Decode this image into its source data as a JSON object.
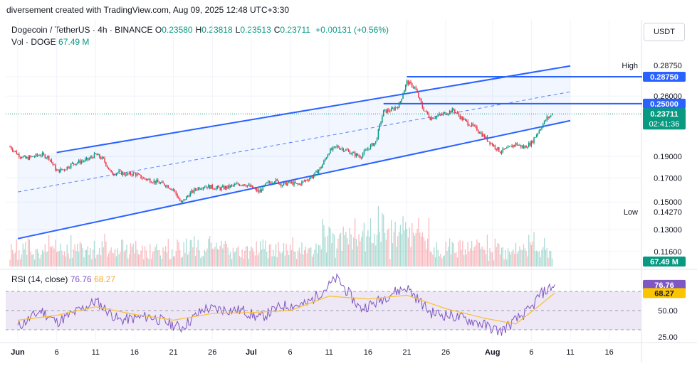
{
  "header": {
    "note": "diversement created with TradingView.com, Aug 09, 2025 12:48 UTC+3:30",
    "symbol": "Dogecoin / TetherUS · 4h · BINANCE",
    "ohlc": [
      {
        "k": "O",
        "v": "0.23580"
      },
      {
        "k": "H",
        "v": "0.23818"
      },
      {
        "k": "L",
        "v": "0.23513"
      },
      {
        "k": "C",
        "v": "0.23711"
      }
    ],
    "change": "+0.00131 (+0.56%)",
    "vol_label": "Vol · DOGE",
    "vol_value": "67.49 M",
    "currency_button": "USDT"
  },
  "rsi_legend": {
    "label": "RSI (14, close)",
    "rsi": "76.76",
    "ma": "68.27"
  },
  "colors": {
    "up": "#089981",
    "down": "#f23645",
    "channel": "#2962ff",
    "rsi_line": "#7e57c2",
    "rsi_ma": "#fbc02d",
    "rsi_band": "#ede7f6"
  },
  "chart_data": {
    "type": "candlestick",
    "symbol": "DOGE/USDT",
    "interval": "4h",
    "x_axis": {
      "labels": [
        {
          "text": "Jun",
          "date": "2025-06-01"
        },
        {
          "text": "6",
          "date": "2025-06-06"
        },
        {
          "text": "11",
          "date": "2025-06-11"
        },
        {
          "text": "16",
          "date": "2025-06-16"
        },
        {
          "text": "21",
          "date": "2025-06-21"
        },
        {
          "text": "26",
          "date": "2025-06-26"
        },
        {
          "text": "Jul",
          "date": "2025-07-01"
        },
        {
          "text": "6",
          "date": "2025-07-06"
        },
        {
          "text": "11",
          "date": "2025-07-11"
        },
        {
          "text": "16",
          "date": "2025-07-16"
        },
        {
          "text": "21",
          "date": "2025-07-21"
        },
        {
          "text": "26",
          "date": "2025-07-26"
        },
        {
          "text": "Aug",
          "date": "2025-08-01"
        },
        {
          "text": "6",
          "date": "2025-08-06"
        },
        {
          "text": "11",
          "date": "2025-08-11"
        },
        {
          "text": "16",
          "date": "2025-08-16"
        }
      ]
    },
    "y_axis": {
      "scale": "log",
      "ticks": [
        "0.28750",
        "0.26000",
        "0.19000",
        "0.17000",
        "0.15000",
        "0.13000",
        "0.11600"
      ]
    },
    "price_path": [
      {
        "date": "2025-05-31",
        "close": 0.2
      },
      {
        "date": "2025-06-01",
        "close": 0.192
      },
      {
        "date": "2025-06-02",
        "close": 0.188
      },
      {
        "date": "2025-06-03",
        "close": 0.19
      },
      {
        "date": "2025-06-04",
        "close": 0.192
      },
      {
        "date": "2025-06-05",
        "close": 0.189
      },
      {
        "date": "2025-06-06",
        "close": 0.176
      },
      {
        "date": "2025-06-07",
        "close": 0.178
      },
      {
        "date": "2025-06-08",
        "close": 0.183
      },
      {
        "date": "2025-06-09",
        "close": 0.185
      },
      {
        "date": "2025-06-10",
        "close": 0.187
      },
      {
        "date": "2025-06-11",
        "close": 0.192
      },
      {
        "date": "2025-06-12",
        "close": 0.187
      },
      {
        "date": "2025-06-13",
        "close": 0.174
      },
      {
        "date": "2025-06-14",
        "close": 0.175
      },
      {
        "date": "2025-06-15",
        "close": 0.173
      },
      {
        "date": "2025-06-16",
        "close": 0.174
      },
      {
        "date": "2025-06-17",
        "close": 0.17
      },
      {
        "date": "2025-06-18",
        "close": 0.168
      },
      {
        "date": "2025-06-19",
        "close": 0.166
      },
      {
        "date": "2025-06-20",
        "close": 0.164
      },
      {
        "date": "2025-06-21",
        "close": 0.16
      },
      {
        "date": "2025-06-22",
        "close": 0.149
      },
      {
        "date": "2025-06-23",
        "close": 0.156
      },
      {
        "date": "2025-06-24",
        "close": 0.161
      },
      {
        "date": "2025-06-25",
        "close": 0.163
      },
      {
        "date": "2025-06-26",
        "close": 0.162
      },
      {
        "date": "2025-06-27",
        "close": 0.161
      },
      {
        "date": "2025-06-28",
        "close": 0.162
      },
      {
        "date": "2025-06-29",
        "close": 0.164
      },
      {
        "date": "2025-06-30",
        "close": 0.165
      },
      {
        "date": "2025-07-01",
        "close": 0.162
      },
      {
        "date": "2025-07-02",
        "close": 0.158
      },
      {
        "date": "2025-07-03",
        "close": 0.165
      },
      {
        "date": "2025-07-04",
        "close": 0.168
      },
      {
        "date": "2025-07-05",
        "close": 0.164
      },
      {
        "date": "2025-07-06",
        "close": 0.166
      },
      {
        "date": "2025-07-07",
        "close": 0.164
      },
      {
        "date": "2025-07-08",
        "close": 0.168
      },
      {
        "date": "2025-07-09",
        "close": 0.172
      },
      {
        "date": "2025-07-10",
        "close": 0.18
      },
      {
        "date": "2025-07-11",
        "close": 0.195
      },
      {
        "date": "2025-07-12",
        "close": 0.2
      },
      {
        "date": "2025-07-13",
        "close": 0.197
      },
      {
        "date": "2025-07-14",
        "close": 0.193
      },
      {
        "date": "2025-07-15",
        "close": 0.19
      },
      {
        "date": "2025-07-16",
        "close": 0.198
      },
      {
        "date": "2025-07-17",
        "close": 0.205
      },
      {
        "date": "2025-07-18",
        "close": 0.24
      },
      {
        "date": "2025-07-19",
        "close": 0.242
      },
      {
        "date": "2025-07-20",
        "close": 0.248
      },
      {
        "date": "2025-07-21",
        "close": 0.28
      },
      {
        "date": "2025-07-22",
        "close": 0.272
      },
      {
        "date": "2025-07-23",
        "close": 0.245
      },
      {
        "date": "2025-07-24",
        "close": 0.232
      },
      {
        "date": "2025-07-25",
        "close": 0.235
      },
      {
        "date": "2025-07-26",
        "close": 0.238
      },
      {
        "date": "2025-07-27",
        "close": 0.242
      },
      {
        "date": "2025-07-28",
        "close": 0.232
      },
      {
        "date": "2025-07-29",
        "close": 0.225
      },
      {
        "date": "2025-07-30",
        "close": 0.219
      },
      {
        "date": "2025-07-31",
        "close": 0.21
      },
      {
        "date": "2025-08-01",
        "close": 0.202
      },
      {
        "date": "2025-08-02",
        "close": 0.195
      },
      {
        "date": "2025-08-03",
        "close": 0.198
      },
      {
        "date": "2025-08-04",
        "close": 0.203
      },
      {
        "date": "2025-08-05",
        "close": 0.199
      },
      {
        "date": "2025-08-06",
        "close": 0.204
      },
      {
        "date": "2025-08-07",
        "close": 0.218
      },
      {
        "date": "2025-08-08",
        "close": 0.232
      },
      {
        "date": "2025-08-09",
        "close": 0.23711
      }
    ],
    "channel": {
      "upper": [
        {
          "date": "2025-06-06",
          "price": 0.194
        },
        {
          "date": "2025-08-09",
          "price": 0.3
        }
      ],
      "lower": [
        {
          "date": "2025-06-01",
          "price": 0.124
        },
        {
          "date": "2025-08-09",
          "price": 0.225
        }
      ],
      "mid": [
        {
          "date": "2025-06-01",
          "price": 0.158
        },
        {
          "date": "2025-08-09",
          "price": 0.262
        }
      ]
    },
    "levels": [
      {
        "label": "High",
        "price": 0.2875,
        "text": "0.28750"
      },
      {
        "price": 0.25,
        "text": "0.25000"
      },
      {
        "label": "Low",
        "price": 0.1427,
        "text": "0.14270"
      },
      {
        "price": 0.23711,
        "text": "0.23711",
        "countdown": "02:41:36",
        "current": true
      }
    ],
    "volume_axis_label": "67.49 M",
    "rsi": {
      "period": 14,
      "value": 76.76,
      "ma": 68.27,
      "levels": [
        70,
        50,
        30
      ],
      "tick_labels": [
        "50.00",
        "25.00"
      ],
      "path": [
        {
          "date": "2025-06-01",
          "rsi": 33
        },
        {
          "date": "2025-06-04",
          "rsi": 50
        },
        {
          "date": "2025-06-06",
          "rsi": 38
        },
        {
          "date": "2025-06-10",
          "rsi": 55
        },
        {
          "date": "2025-06-11",
          "rsi": 60
        },
        {
          "date": "2025-06-14",
          "rsi": 40
        },
        {
          "date": "2025-06-18",
          "rsi": 44
        },
        {
          "date": "2025-06-22",
          "rsi": 32
        },
        {
          "date": "2025-06-25",
          "rsi": 52
        },
        {
          "date": "2025-06-30",
          "rsi": 50
        },
        {
          "date": "2025-07-02",
          "rsi": 42
        },
        {
          "date": "2025-07-05",
          "rsi": 55
        },
        {
          "date": "2025-07-08",
          "rsi": 56
        },
        {
          "date": "2025-07-11",
          "rsi": 76
        },
        {
          "date": "2025-07-12",
          "rsi": 84
        },
        {
          "date": "2025-07-15",
          "rsi": 52
        },
        {
          "date": "2025-07-17",
          "rsi": 58
        },
        {
          "date": "2025-07-19",
          "rsi": 68
        },
        {
          "date": "2025-07-21",
          "rsi": 74
        },
        {
          "date": "2025-07-24",
          "rsi": 48
        },
        {
          "date": "2025-07-27",
          "rsi": 44
        },
        {
          "date": "2025-07-30",
          "rsi": 38
        },
        {
          "date": "2025-08-02",
          "rsi": 28
        },
        {
          "date": "2025-08-04",
          "rsi": 40
        },
        {
          "date": "2025-08-06",
          "rsi": 52
        },
        {
          "date": "2025-08-07",
          "rsi": 66
        },
        {
          "date": "2025-08-09",
          "rsi": 76.76
        }
      ],
      "ma_path": [
        {
          "date": "2025-06-01",
          "ma": 40
        },
        {
          "date": "2025-06-06",
          "ma": 45
        },
        {
          "date": "2025-06-11",
          "ma": 54
        },
        {
          "date": "2025-06-16",
          "ma": 46
        },
        {
          "date": "2025-06-21",
          "ma": 40
        },
        {
          "date": "2025-06-26",
          "ma": 47
        },
        {
          "date": "2025-07-01",
          "ma": 48
        },
        {
          "date": "2025-07-06",
          "ma": 50
        },
        {
          "date": "2025-07-11",
          "ma": 65
        },
        {
          "date": "2025-07-16",
          "ma": 62
        },
        {
          "date": "2025-07-21",
          "ma": 66
        },
        {
          "date": "2025-07-26",
          "ma": 52
        },
        {
          "date": "2025-07-31",
          "ma": 42
        },
        {
          "date": "2025-08-04",
          "ma": 36
        },
        {
          "date": "2025-08-07",
          "ma": 55
        },
        {
          "date": "2025-08-09",
          "ma": 68.27
        }
      ]
    }
  }
}
